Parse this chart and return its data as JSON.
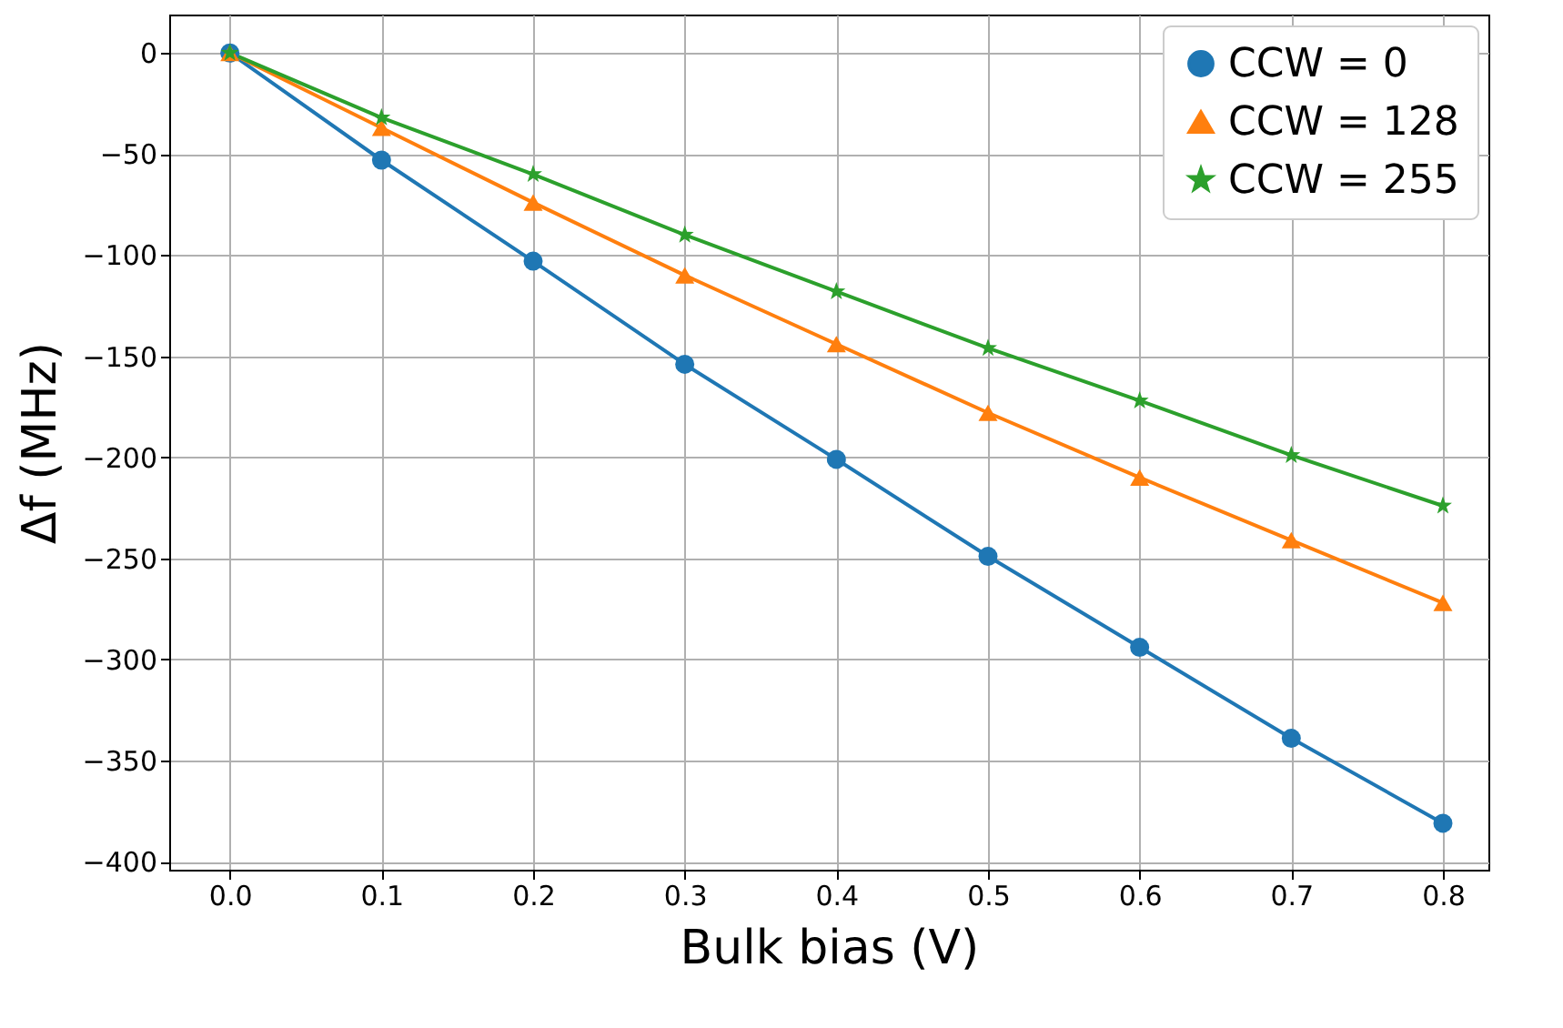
{
  "chart_data": {
    "type": "line",
    "xlabel": "Bulk bias (V)",
    "ylabel": "Δf (MHz)",
    "x": [
      0,
      0.1,
      0.2,
      0.3,
      0.4,
      0.5,
      0.6,
      0.7,
      0.8
    ],
    "series": [
      {
        "name": "CCW = 0",
        "color": "#1f77b4",
        "marker": "circle",
        "values": [
          0,
          -53,
          -103,
          -154,
          -201,
          -249,
          -294,
          -339,
          -381
        ]
      },
      {
        "name": "CCW = 128",
        "color": "#ff7f0e",
        "marker": "triangle",
        "values": [
          0,
          -37,
          -74,
          -110,
          -144,
          -178,
          -210,
          -241,
          -272
        ]
      },
      {
        "name": "CCW = 255",
        "color": "#2ca02c",
        "marker": "star",
        "values": [
          0,
          -32,
          -60,
          -90,
          -118,
          -146,
          -172,
          -199,
          -224
        ]
      }
    ],
    "xlim": [
      -0.04,
      0.83
    ],
    "xticks": [
      {
        "value": 0,
        "label": "0.0"
      },
      0.1,
      0.2,
      0.3,
      0.4,
      0.5,
      0.6,
      0.7,
      0.8
    ],
    "ylim": [
      -404,
      19
    ],
    "yticks": [
      -400,
      -350,
      -300,
      -250,
      -200,
      -150,
      -100,
      -50,
      0
    ],
    "grid": true,
    "legend": "top right",
    "line_style": "solid"
  }
}
